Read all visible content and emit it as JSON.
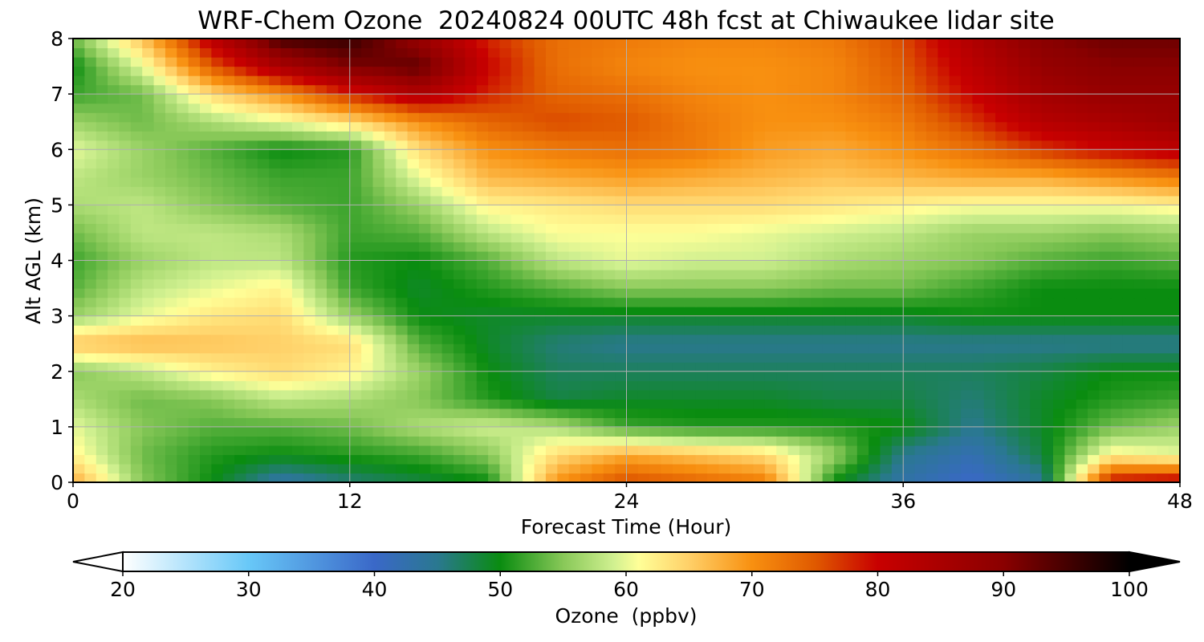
{
  "chart_data": {
    "type": "heatmap",
    "title": "WRF-Chem Ozone  20240824 00UTC 48h fcst at Chiwaukee lidar site",
    "xlabel": "Forecast Time (Hour)",
    "ylabel": "Alt AGL (km)",
    "xlim": [
      0,
      48
    ],
    "ylim": [
      0,
      8
    ],
    "x_ticks": [
      0,
      12,
      24,
      36,
      48
    ],
    "y_ticks": [
      0,
      1,
      2,
      3,
      4,
      5,
      6,
      7,
      8
    ],
    "grid": true,
    "x": [
      0,
      3,
      6,
      9,
      12,
      15,
      18,
      21,
      24,
      27,
      30,
      33,
      36,
      39,
      42,
      45,
      48
    ],
    "y": [
      0,
      0.5,
      1,
      1.5,
      2,
      2.5,
      3,
      3.5,
      4,
      4.5,
      5,
      5.5,
      6,
      6.5,
      7,
      7.5,
      8
    ],
    "z": [
      [
        68,
        55,
        50,
        43,
        46,
        48,
        50,
        70,
        76,
        74,
        72,
        50,
        43,
        40,
        44,
        80,
        82
      ],
      [
        62,
        54,
        51,
        50,
        51,
        52,
        55,
        64,
        68,
        66,
        64,
        56,
        45,
        42,
        48,
        62,
        60
      ],
      [
        60,
        55,
        53,
        53,
        54,
        57,
        59,
        57,
        52,
        51,
        51,
        51,
        50,
        45,
        49,
        54,
        56
      ],
      [
        57,
        54,
        55,
        58,
        57,
        55,
        51,
        48,
        49,
        49,
        49,
        48,
        48,
        46,
        49,
        51,
        52
      ],
      [
        55,
        58,
        62,
        64,
        62,
        56,
        50,
        47,
        47,
        47,
        47,
        47,
        47,
        47,
        48,
        50,
        50
      ],
      [
        66,
        67,
        66,
        65,
        64,
        53,
        49,
        46,
        45,
        45,
        45,
        45,
        45,
        45,
        45,
        45,
        45
      ],
      [
        56,
        60,
        63,
        64,
        56,
        50,
        49,
        49,
        49,
        49,
        49,
        49,
        49,
        50,
        50,
        50,
        50
      ],
      [
        53,
        58,
        60,
        62,
        52,
        49,
        51,
        53,
        55,
        55,
        55,
        54,
        54,
        52,
        50,
        50,
        50
      ],
      [
        52,
        56,
        58,
        58,
        51,
        50,
        53,
        58,
        60,
        59,
        59,
        57,
        56,
        55,
        53,
        52,
        53
      ],
      [
        54,
        58,
        58,
        57,
        52,
        53,
        58,
        61,
        61,
        61,
        60,
        59,
        58,
        56,
        56,
        55,
        56
      ],
      [
        57,
        58,
        55,
        53,
        52,
        56,
        62,
        63,
        64,
        64,
        64,
        63,
        62,
        61,
        61,
        61,
        62
      ],
      [
        58,
        56,
        54,
        52,
        52,
        60,
        67,
        68,
        69,
        68,
        67,
        66,
        67,
        68,
        68,
        70,
        72
      ],
      [
        60,
        56,
        53,
        50,
        51,
        64,
        70,
        72,
        73,
        72,
        69,
        68,
        70,
        73,
        77,
        80,
        82
      ],
      [
        56,
        54,
        57,
        60,
        64,
        70,
        74,
        76,
        75,
        72,
        70,
        70,
        72,
        77,
        83,
        85,
        87
      ],
      [
        52,
        54,
        64,
        70,
        78,
        84,
        78,
        74,
        73,
        71,
        70,
        71,
        74,
        80,
        86,
        88,
        88
      ],
      [
        50,
        60,
        75,
        85,
        91,
        93,
        80,
        73,
        71,
        70,
        70,
        71,
        75,
        82,
        88,
        90,
        90
      ],
      [
        54,
        66,
        82,
        95,
        96,
        88,
        78,
        73,
        72,
        71,
        71,
        72,
        76,
        84,
        90,
        92,
        92
      ]
    ],
    "colorbar": {
      "label": "Ozone  (ppbv)",
      "min": 20,
      "max": 100,
      "ticks": [
        20,
        30,
        40,
        50,
        60,
        70,
        80,
        90,
        100
      ],
      "extend": "both",
      "stops": [
        {
          "v": 20,
          "c": "#ffffff"
        },
        {
          "v": 30,
          "c": "#68c8f8"
        },
        {
          "v": 40,
          "c": "#3a68c8"
        },
        {
          "v": 45,
          "c": "#2a7890"
        },
        {
          "v": 50,
          "c": "#0a8c10"
        },
        {
          "v": 55,
          "c": "#88c858"
        },
        {
          "v": 59,
          "c": "#d0f090"
        },
        {
          "v": 61,
          "c": "#ffff98"
        },
        {
          "v": 65,
          "c": "#ffd068"
        },
        {
          "v": 70,
          "c": "#f89010"
        },
        {
          "v": 75,
          "c": "#e05a00"
        },
        {
          "v": 80,
          "c": "#c80000"
        },
        {
          "v": 90,
          "c": "#8a0000"
        },
        {
          "v": 100,
          "c": "#000000"
        }
      ]
    }
  }
}
